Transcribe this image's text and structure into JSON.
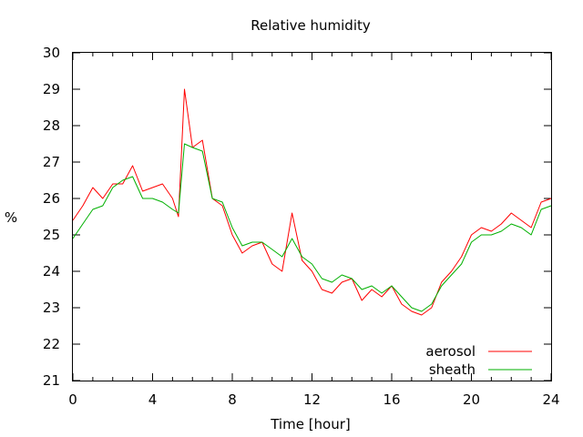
{
  "chart_data": {
    "type": "line",
    "title": "Relative humidity",
    "xlabel": "Time [hour]",
    "ylabel": "%",
    "xlim": [
      0,
      24
    ],
    "ylim": [
      21,
      30
    ],
    "xticks": [
      "0",
      "4",
      "8",
      "12",
      "16",
      "20",
      "24"
    ],
    "yticks": [
      "21",
      "22",
      "23",
      "24",
      "25",
      "26",
      "27",
      "28",
      "29",
      "30"
    ],
    "grid": false,
    "legend_position": "bottom-right",
    "series": [
      {
        "name": "aerosol",
        "color": "#ff0000",
        "x": [
          0,
          0.5,
          1,
          1.5,
          2,
          2.5,
          3,
          3.5,
          4,
          4.5,
          5,
          5.3,
          5.6,
          6,
          6.5,
          7,
          7.5,
          8,
          8.5,
          9,
          9.5,
          10,
          10.5,
          11,
          11.5,
          12,
          12.5,
          13,
          13.5,
          14,
          14.5,
          15,
          15.5,
          16,
          16.5,
          17,
          17.5,
          18,
          18.5,
          19,
          19.5,
          20,
          20.5,
          21,
          21.5,
          22,
          22.5,
          23,
          23.5,
          24
        ],
        "values": [
          25.4,
          25.8,
          26.3,
          26.0,
          26.4,
          26.4,
          26.9,
          26.2,
          26.3,
          26.4,
          26.0,
          25.5,
          29.0,
          27.4,
          27.6,
          26.0,
          25.8,
          25.0,
          24.5,
          24.7,
          24.8,
          24.2,
          24.0,
          25.6,
          24.3,
          24.0,
          23.5,
          23.4,
          23.7,
          23.8,
          23.2,
          23.5,
          23.3,
          23.6,
          23.1,
          22.9,
          22.8,
          23.0,
          23.7,
          24.0,
          24.4,
          25.0,
          25.2,
          25.1,
          25.3,
          25.6,
          25.4,
          25.2,
          25.9,
          26.0
        ]
      },
      {
        "name": "sheath",
        "color": "#00b000",
        "x": [
          0,
          0.5,
          1,
          1.5,
          2,
          2.5,
          3,
          3.5,
          4,
          4.5,
          5,
          5.3,
          5.6,
          6,
          6.5,
          7,
          7.5,
          8,
          8.5,
          9,
          9.5,
          10,
          10.5,
          11,
          11.5,
          12,
          12.5,
          13,
          13.5,
          14,
          14.5,
          15,
          15.5,
          16,
          16.5,
          17,
          17.5,
          18,
          18.5,
          19,
          19.5,
          20,
          20.5,
          21,
          21.5,
          22,
          22.5,
          23,
          23.5,
          24
        ],
        "values": [
          24.9,
          25.3,
          25.7,
          25.8,
          26.3,
          26.5,
          26.6,
          26.0,
          26.0,
          25.9,
          25.7,
          25.6,
          27.5,
          27.4,
          27.3,
          26.0,
          25.9,
          25.2,
          24.7,
          24.8,
          24.8,
          24.6,
          24.4,
          24.9,
          24.4,
          24.2,
          23.8,
          23.7,
          23.9,
          23.8,
          23.5,
          23.6,
          23.4,
          23.6,
          23.3,
          23.0,
          22.9,
          23.1,
          23.6,
          23.9,
          24.2,
          24.8,
          25.0,
          25.0,
          25.1,
          25.3,
          25.2,
          25.0,
          25.7,
          25.8
        ]
      }
    ]
  }
}
